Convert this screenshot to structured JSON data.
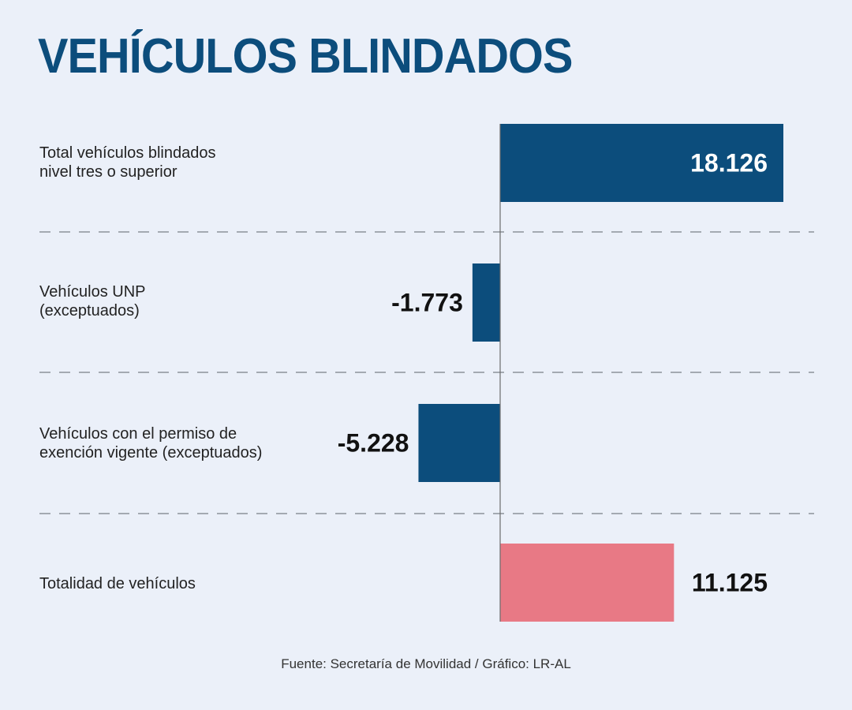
{
  "title": "VEHÍCULOS BLINDADOS",
  "source": "Fuente: Secretaría de Movilidad / Gráfico: LR-AL",
  "chart_data": {
    "type": "bar",
    "orientation": "horizontal",
    "title": "VEHÍCULOS BLINDADOS",
    "xlabel": "",
    "ylabel": "",
    "grid": false,
    "categories": [
      "Total vehículos blindados\nnivel tres o superior",
      "Vehículos UNP\n(exceptuados)",
      "Vehículos con el permiso de\nexención vigente (exceptuados)",
      "Totalidad de vehículos"
    ],
    "values": [
      18126,
      -1773,
      -5228,
      11125
    ],
    "value_labels": [
      "18.126",
      "-1.773",
      "-5.228",
      "11.125"
    ],
    "colors": [
      "#0c4d7c",
      "#0c4d7c",
      "#0c4d7c",
      "#e87985"
    ],
    "label_colors": [
      "#ffffff",
      "#111111",
      "#111111",
      "#111111"
    ],
    "label_placement": [
      "inside-end",
      "outside-start",
      "outside-start",
      "outside-end"
    ],
    "xlim": [
      -8000,
      20000
    ],
    "separators": "dashed"
  }
}
